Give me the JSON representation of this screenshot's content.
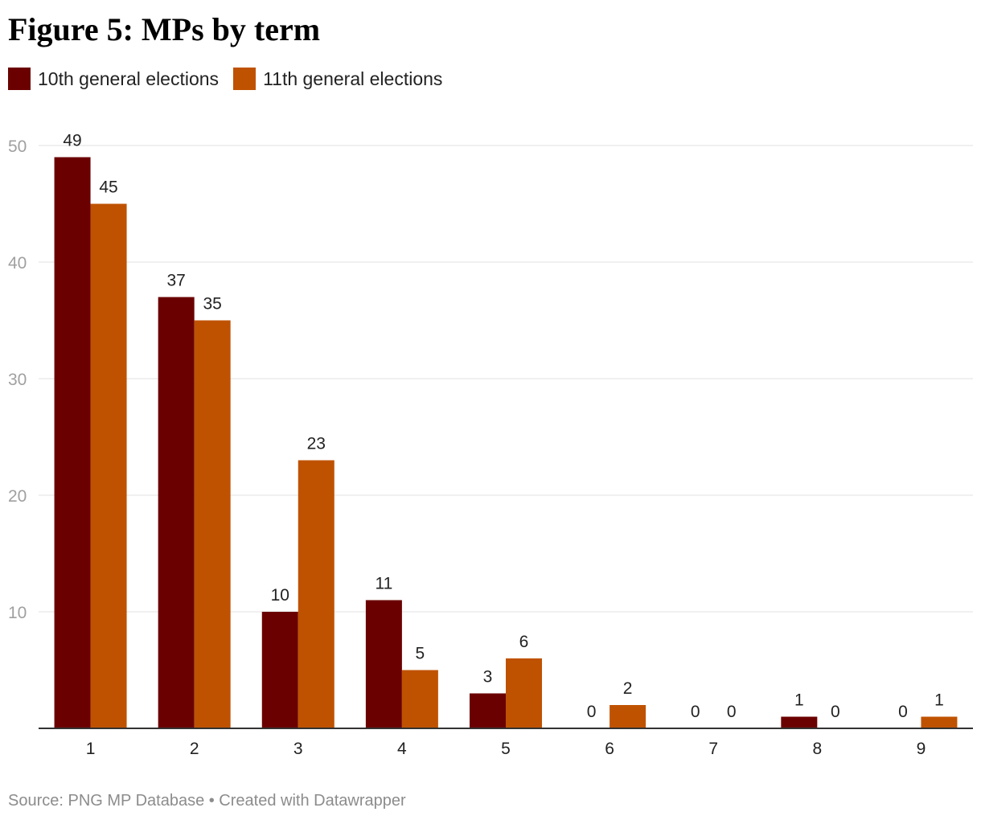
{
  "chart_data": {
    "type": "bar",
    "title": "Figure 5: MPs by term",
    "categories": [
      "1",
      "2",
      "3",
      "4",
      "5",
      "6",
      "7",
      "8",
      "9"
    ],
    "series": [
      {
        "name": "10th general elections",
        "color": "#6b0000",
        "values": [
          49,
          37,
          10,
          11,
          3,
          0,
          0,
          1,
          0
        ]
      },
      {
        "name": "11th general elections",
        "color": "#bf5200",
        "values": [
          45,
          35,
          23,
          5,
          6,
          2,
          0,
          0,
          1
        ]
      }
    ],
    "ylim": [
      0,
      50
    ],
    "yticks": [
      10,
      20,
      30,
      40,
      50
    ],
    "xlabel": "",
    "ylabel": "",
    "grid": true,
    "legend_position": "top-left",
    "data_labels": true
  },
  "source_text": "Source: PNG MP Database • Created with Datawrapper"
}
